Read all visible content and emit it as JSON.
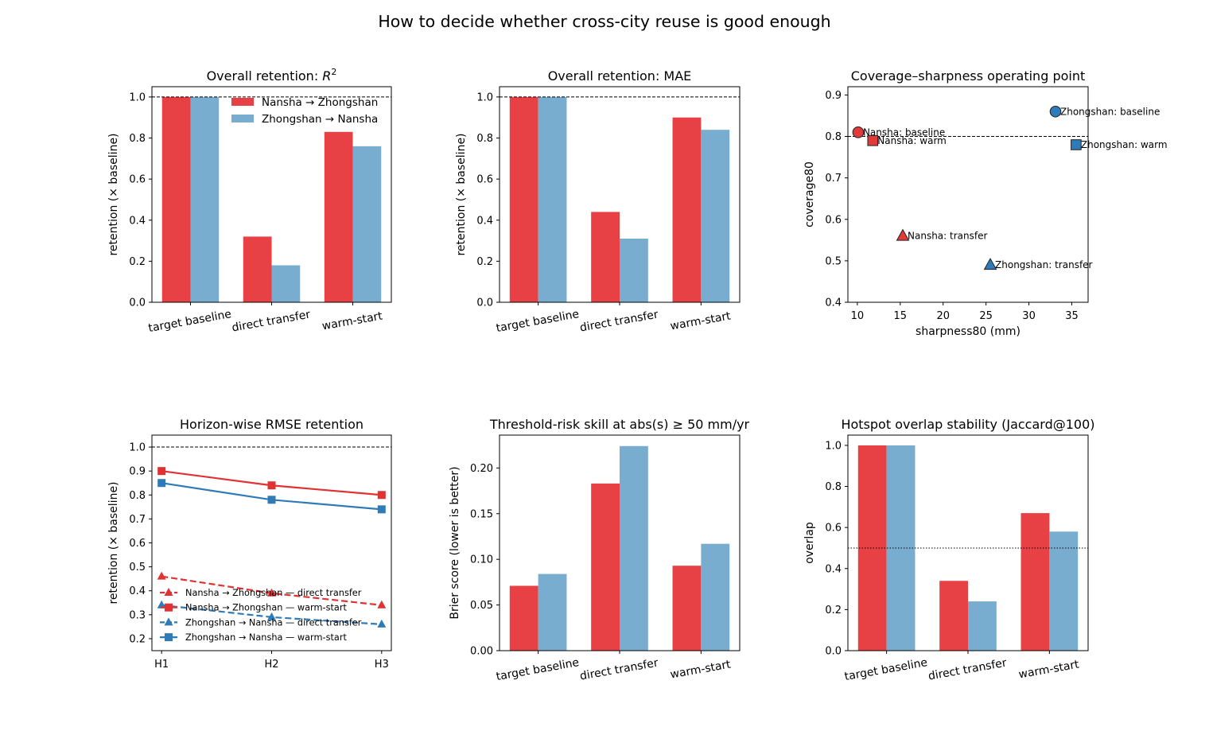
{
  "figure": {
    "suptitle": "How to decide whether cross-city reuse is good enough"
  },
  "colors": {
    "nansha": "#e84145",
    "zhongshan": "#78adcf",
    "line_nansha": "#e03232",
    "line_zhongshan": "#2e7bb8",
    "marker_nansha": "#e03a3a",
    "marker_zhongshan": "#2e7bb8"
  },
  "chart_data": [
    {
      "id": "r2",
      "type": "bar",
      "title": "Overall retention: ",
      "title_math": "R",
      "title_sup": "2",
      "ylabel": "retention (× baseline)",
      "xlabel": "",
      "categories": [
        "target baseline",
        "direct transfer",
        "warm-start"
      ],
      "series": [
        {
          "name": "Nansha → Zhongshan",
          "values": [
            1.0,
            0.32,
            0.83
          ]
        },
        {
          "name": "Zhongshan → Nansha",
          "values": [
            1.0,
            0.18,
            0.76
          ]
        }
      ],
      "ylim": [
        0,
        1.05
      ],
      "yticks": [
        0.0,
        0.2,
        0.4,
        0.6,
        0.8,
        1.0
      ],
      "ytick_labels": [
        "0.0",
        "0.2",
        "0.4",
        "0.6",
        "0.8",
        "1.0"
      ],
      "reference_line": 1.0,
      "legend": "top-right"
    },
    {
      "id": "mae",
      "type": "bar",
      "title": "Overall retention: MAE",
      "ylabel": "retention (× baseline)",
      "xlabel": "",
      "categories": [
        "target baseline",
        "direct transfer",
        "warm-start"
      ],
      "series": [
        {
          "values": [
            1.0,
            0.44,
            0.9
          ]
        },
        {
          "values": [
            1.0,
            0.31,
            0.84
          ]
        }
      ],
      "ylim": [
        0,
        1.05
      ],
      "yticks": [
        0.0,
        0.2,
        0.4,
        0.6,
        0.8,
        1.0
      ],
      "ytick_labels": [
        "0.0",
        "0.2",
        "0.4",
        "0.6",
        "0.8",
        "1.0"
      ],
      "reference_line": 1.0
    },
    {
      "id": "coverage",
      "type": "scatter",
      "title": "Coverage–sharpness operating point",
      "xlabel": "sharpness80 (mm)",
      "ylabel": "coverage80",
      "xlim": [
        8.9,
        36.9
      ],
      "ylim": [
        0.4,
        0.92
      ],
      "xticks": [
        10,
        15,
        20,
        25,
        30,
        35
      ],
      "xtick_labels": [
        "10",
        "15",
        "20",
        "25",
        "30",
        "35"
      ],
      "yticks": [
        0.4,
        0.5,
        0.6,
        0.7,
        0.8,
        0.9
      ],
      "ytick_labels": [
        "0.4",
        "0.5",
        "0.6",
        "0.7",
        "0.8",
        "0.9"
      ],
      "reference_line": 0.8,
      "points": [
        {
          "label": "Nansha: baseline",
          "x": 10.1,
          "y": 0.81,
          "marker": "circle",
          "city": "nansha"
        },
        {
          "label": "Nansha: warm",
          "x": 11.8,
          "y": 0.79,
          "marker": "square",
          "city": "nansha"
        },
        {
          "label": "Nansha: transfer",
          "x": 15.3,
          "y": 0.56,
          "marker": "triangle",
          "city": "nansha"
        },
        {
          "label": "Zhongshan: baseline",
          "x": 33.1,
          "y": 0.86,
          "marker": "circle",
          "city": "zhongshan"
        },
        {
          "label": "Zhongshan: warm",
          "x": 35.5,
          "y": 0.78,
          "marker": "square",
          "city": "zhongshan"
        },
        {
          "label": "Zhongshan: transfer",
          "x": 25.5,
          "y": 0.49,
          "marker": "triangle",
          "city": "zhongshan"
        }
      ]
    },
    {
      "id": "horizon",
      "type": "line",
      "title": "Horizon-wise RMSE retention",
      "ylabel": "retention (× baseline)",
      "xlabel": "",
      "x": [
        "H1",
        "H2",
        "H3"
      ],
      "ylim": [
        0.15,
        1.05
      ],
      "yticks": [
        0.2,
        0.3,
        0.4,
        0.5,
        0.6,
        0.7,
        0.8,
        0.9,
        1.0
      ],
      "ytick_labels": [
        "0.2",
        "0.3",
        "0.4",
        "0.5",
        "0.6",
        "0.7",
        "0.8",
        "0.9",
        "1.0"
      ],
      "reference_line": 1.0,
      "legend": "lower-left",
      "series": [
        {
          "name": "Nansha → Zhongshan — direct transfer",
          "values": [
            0.46,
            0.39,
            0.34
          ],
          "city": "nansha",
          "style": "dashed",
          "marker": "triangle"
        },
        {
          "name": "Nansha → Zhongshan — warm-start",
          "values": [
            0.9,
            0.84,
            0.8
          ],
          "city": "nansha",
          "style": "solid",
          "marker": "square"
        },
        {
          "name": "Zhongshan → Nansha — direct transfer",
          "values": [
            0.34,
            0.29,
            0.26
          ],
          "city": "zhongshan",
          "style": "dashed",
          "marker": "triangle"
        },
        {
          "name": "Zhongshan → Nansha — warm-start",
          "values": [
            0.85,
            0.78,
            0.74
          ],
          "city": "zhongshan",
          "style": "solid",
          "marker": "square"
        }
      ]
    },
    {
      "id": "brier",
      "type": "bar",
      "title": "Threshold-risk skill at abs(s) ≥ 50 mm/yr",
      "ylabel": "Brier score (lower is better)",
      "xlabel": "",
      "categories": [
        "target baseline",
        "direct transfer",
        "warm-start"
      ],
      "series": [
        {
          "values": [
            0.071,
            0.183,
            0.093
          ]
        },
        {
          "values": [
            0.084,
            0.224,
            0.117
          ]
        }
      ],
      "ylim": [
        0,
        0.236
      ],
      "yticks": [
        0.0,
        0.05,
        0.1,
        0.15,
        0.2
      ],
      "ytick_labels": [
        "0.00",
        "0.05",
        "0.10",
        "0.15",
        "0.20"
      ]
    },
    {
      "id": "jaccard",
      "type": "bar",
      "title": "Hotspot overlap stability (Jaccard@100)",
      "ylabel": "overlap",
      "xlabel": "",
      "categories": [
        "target baseline",
        "direct transfer",
        "warm-start"
      ],
      "series": [
        {
          "values": [
            1.0,
            0.34,
            0.67
          ]
        },
        {
          "values": [
            1.0,
            0.24,
            0.58
          ]
        }
      ],
      "ylim": [
        0,
        1.05
      ],
      "yticks": [
        0.0,
        0.2,
        0.4,
        0.6,
        0.8,
        1.0
      ],
      "ytick_labels": [
        "0.0",
        "0.2",
        "0.4",
        "0.6",
        "0.8",
        "1.0"
      ],
      "reference_line": 0.5,
      "reference_style": "dotted"
    }
  ]
}
